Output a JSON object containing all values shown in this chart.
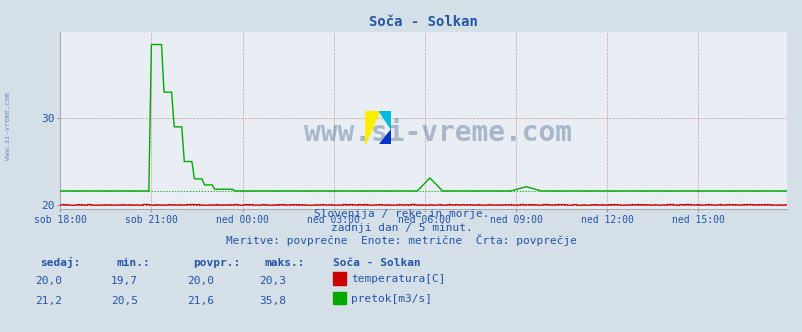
{
  "title": "Soča - Solkan",
  "background_color": "#d4dfe8",
  "plot_bg_color": "#e8eef4",
  "grid_color": "#cc9999",
  "watermark_text": "www.si-vreme.com",
  "watermark_color": "#1a3a6a",
  "watermark_alpha": 0.3,
  "sidebar_text": "www.si-vreme.com",
  "subtitle1": "Slovenija / reke in morje.",
  "subtitle2": "zadnji dan / 5 minut.",
  "subtitle3": "Meritve: povprečne  Enote: metrične  Črta: povprečje",
  "xlabel_color": "#2255aa",
  "ylabel_color": "#2255aa",
  "title_color": "#2255aa",
  "subtitle_color": "#2255aa",
  "x_tick_labels": [
    "sob 18:00",
    "sob 21:00",
    "ned 00:00",
    "ned 03:00",
    "ned 06:00",
    "ned 09:00",
    "ned 12:00",
    "ned 15:00"
  ],
  "x_tick_positions": [
    0,
    36,
    72,
    108,
    144,
    180,
    216,
    252
  ],
  "ylim": [
    19.5,
    40
  ],
  "y_ticks": [
    20,
    30
  ],
  "n_points": 288,
  "temp_avg": 20.0,
  "flow_avg": 21.6,
  "temp_color": "#cc0000",
  "flow_color": "#00aa00",
  "table_header_color": "#2255aa",
  "table_data_color": "#2255aa",
  "legend_title": "Soča - Solkan",
  "legend_items": [
    {
      "label": "temperatura[C]",
      "color": "#cc0000"
    },
    {
      "label": "pretok[m3/s]",
      "color": "#00aa00"
    }
  ],
  "table_sedaj": [
    "20,0",
    "21,2"
  ],
  "table_min": [
    "19,7",
    "20,5"
  ],
  "table_povpr": [
    "20,0",
    "21,6"
  ],
  "table_maks": [
    "20,3",
    "35,8"
  ],
  "icon_yellow": "#ffee00",
  "icon_blue": "#0033cc",
  "icon_cyan": "#00bbdd"
}
